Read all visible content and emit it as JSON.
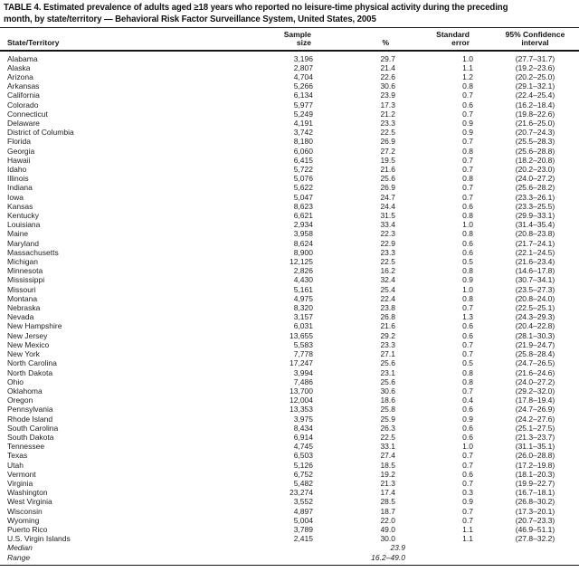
{
  "title": "TABLE 4. Estimated prevalence of adults aged ≥18 years who reported no leisure-time physical activity during the preceding\nmonth, by state/territory — Behavioral Risk Factor Surveillance System, United States, 2005",
  "table": {
    "columns": {
      "state": "State/Territory",
      "sample": "Sample\nsize",
      "pct": "%",
      "se": "Standard\nerror",
      "ci": "95% Confidence\ninterval"
    },
    "rows": [
      {
        "state": "Alabama",
        "sample": "3,196",
        "pct": "29.7",
        "se": "1.0",
        "ci": "(27.7–31.7)"
      },
      {
        "state": "Alaska",
        "sample": "2,807",
        "pct": "21.4",
        "se": "1.1",
        "ci": "(19.2–23.6)"
      },
      {
        "state": "Arizona",
        "sample": "4,704",
        "pct": "22.6",
        "se": "1.2",
        "ci": "(20.2–25.0)"
      },
      {
        "state": "Arkansas",
        "sample": "5,266",
        "pct": "30.6",
        "se": "0.8",
        "ci": "(29.1–32.1)"
      },
      {
        "state": "California",
        "sample": "6,134",
        "pct": "23.9",
        "se": "0.7",
        "ci": "(22.4–25.4)"
      },
      {
        "state": "Colorado",
        "sample": "5,977",
        "pct": "17.3",
        "se": "0.6",
        "ci": "(16.2–18.4)"
      },
      {
        "state": "Connecticut",
        "sample": "5,249",
        "pct": "21.2",
        "se": "0.7",
        "ci": "(19.8–22.6)"
      },
      {
        "state": "Delaware",
        "sample": "4,191",
        "pct": "23.3",
        "se": "0.9",
        "ci": "(21.6–25.0)"
      },
      {
        "state": "District of Columbia",
        "sample": "3,742",
        "pct": "22.5",
        "se": "0.9",
        "ci": "(20.7–24.3)"
      },
      {
        "state": "Florida",
        "sample": "8,180",
        "pct": "26.9",
        "se": "0.7",
        "ci": "(25.5–28.3)"
      },
      {
        "state": "Georgia",
        "sample": "6,060",
        "pct": "27.2",
        "se": "0.8",
        "ci": "(25.6–28.8)"
      },
      {
        "state": "Hawaii",
        "sample": "6,415",
        "pct": "19.5",
        "se": "0.7",
        "ci": "(18.2–20.8)"
      },
      {
        "state": "Idaho",
        "sample": "5,722",
        "pct": "21.6",
        "se": "0.7",
        "ci": "(20.2–23.0)"
      },
      {
        "state": "Illinois",
        "sample": "5,076",
        "pct": "25.6",
        "se": "0.8",
        "ci": "(24.0–27.2)"
      },
      {
        "state": "Indiana",
        "sample": "5,622",
        "pct": "26.9",
        "se": "0.7",
        "ci": "(25.6–28.2)"
      },
      {
        "state": "Iowa",
        "sample": "5,047",
        "pct": "24.7",
        "se": "0.7",
        "ci": "(23.3–26.1)"
      },
      {
        "state": "Kansas",
        "sample": "8,623",
        "pct": "24.4",
        "se": "0.6",
        "ci": "(23.3–25.5)"
      },
      {
        "state": "Kentucky",
        "sample": "6,621",
        "pct": "31.5",
        "se": "0.8",
        "ci": "(29.9–33.1)"
      },
      {
        "state": "Louisiana",
        "sample": "2,934",
        "pct": "33.4",
        "se": "1.0",
        "ci": "(31.4–35.4)"
      },
      {
        "state": "Maine",
        "sample": "3,958",
        "pct": "22.3",
        "se": "0.8",
        "ci": "(20.8–23.8)"
      },
      {
        "state": "Maryland",
        "sample": "8,624",
        "pct": "22.9",
        "se": "0.6",
        "ci": "(21.7–24.1)"
      },
      {
        "state": "Massachusetts",
        "sample": "8,900",
        "pct": "23.3",
        "se": "0.6",
        "ci": "(22.1–24.5)"
      },
      {
        "state": "Michigan",
        "sample": "12,125",
        "pct": "22.5",
        "se": "0.5",
        "ci": "(21.6–23.4)"
      },
      {
        "state": "Minnesota",
        "sample": "2,826",
        "pct": "16.2",
        "se": "0.8",
        "ci": "(14.6–17.8)"
      },
      {
        "state": "Mississippi",
        "sample": "4,430",
        "pct": "32.4",
        "se": "0.9",
        "ci": "(30.7–34.1)"
      },
      {
        "state": "Missouri",
        "sample": "5,161",
        "pct": "25.4",
        "se": "1.0",
        "ci": "(23.5–27.3)"
      },
      {
        "state": "Montana",
        "sample": "4,975",
        "pct": "22.4",
        "se": "0.8",
        "ci": "(20.8–24.0)"
      },
      {
        "state": "Nebraska",
        "sample": "8,320",
        "pct": "23.8",
        "se": "0.7",
        "ci": "(22.5–25.1)"
      },
      {
        "state": "Nevada",
        "sample": "3,157",
        "pct": "26.8",
        "se": "1.3",
        "ci": "(24.3–29.3)"
      },
      {
        "state": "New Hampshire",
        "sample": "6,031",
        "pct": "21.6",
        "se": "0.6",
        "ci": "(20.4–22.8)"
      },
      {
        "state": "New Jersey",
        "sample": "13,655",
        "pct": "29.2",
        "se": "0.6",
        "ci": "(28.1–30.3)"
      },
      {
        "state": "New Mexico",
        "sample": "5,583",
        "pct": "23.3",
        "se": "0.7",
        "ci": "(21.9–24.7)"
      },
      {
        "state": "New York",
        "sample": "7,778",
        "pct": "27.1",
        "se": "0.7",
        "ci": "(25.8–28.4)"
      },
      {
        "state": "North Carolina",
        "sample": "17,247",
        "pct": "25.6",
        "se": "0.5",
        "ci": "(24.7–26.5)"
      },
      {
        "state": "North Dakota",
        "sample": "3,994",
        "pct": "23.1",
        "se": "0.8",
        "ci": "(21.6–24.6)"
      },
      {
        "state": "Ohio",
        "sample": "7,486",
        "pct": "25.6",
        "se": "0.8",
        "ci": "(24.0–27.2)"
      },
      {
        "state": "Oklahoma",
        "sample": "13,700",
        "pct": "30.6",
        "se": "0.7",
        "ci": "(29.2–32.0)"
      },
      {
        "state": "Oregon",
        "sample": "12,004",
        "pct": "18.6",
        "se": "0.4",
        "ci": "(17.8–19.4)"
      },
      {
        "state": "Pennsylvania",
        "sample": "13,353",
        "pct": "25.8",
        "se": "0.6",
        "ci": "(24.7–26.9)"
      },
      {
        "state": "Rhode Island",
        "sample": "3,975",
        "pct": "25.9",
        "se": "0.9",
        "ci": "(24.2–27.6)"
      },
      {
        "state": "South Carolina",
        "sample": "8,434",
        "pct": "26.3",
        "se": "0.6",
        "ci": "(25.1–27.5)"
      },
      {
        "state": "South Dakota",
        "sample": "6,914",
        "pct": "22.5",
        "se": "0.6",
        "ci": "(21.3–23.7)"
      },
      {
        "state": "Tennessee",
        "sample": "4,745",
        "pct": "33.1",
        "se": "1.0",
        "ci": "(31.1–35.1)"
      },
      {
        "state": "Texas",
        "sample": "6,503",
        "pct": "27.4",
        "se": "0.7",
        "ci": "(26.0–28.8)"
      },
      {
        "state": "Utah",
        "sample": "5,126",
        "pct": "18.5",
        "se": "0.7",
        "ci": "(17.2–19.8)"
      },
      {
        "state": "Vermont",
        "sample": "6,752",
        "pct": "19.2",
        "se": "0.6",
        "ci": "(18.1–20.3)"
      },
      {
        "state": "Virginia",
        "sample": "5,482",
        "pct": "21.3",
        "se": "0.7",
        "ci": "(19.9–22.7)"
      },
      {
        "state": "Washington",
        "sample": "23,274",
        "pct": "17.4",
        "se": "0.3",
        "ci": "(16.7–18.1)"
      },
      {
        "state": "West Virginia",
        "sample": "3,552",
        "pct": "28.5",
        "se": "0.9",
        "ci": "(26.8–30.2)"
      },
      {
        "state": "Wisconsin",
        "sample": "4,897",
        "pct": "18.7",
        "se": "0.7",
        "ci": "(17.3–20.1)"
      },
      {
        "state": "Wyoming",
        "sample": "5,004",
        "pct": "22.0",
        "se": "0.7",
        "ci": "(20.7–23.3)"
      },
      {
        "state": "Puerto Rico",
        "sample": "3,789",
        "pct": "49.0",
        "se": "1.1",
        "ci": "(46.9–51.1)"
      },
      {
        "state": "U.S. Virgin Islands",
        "sample": "2,415",
        "pct": "30.0",
        "se": "1.1",
        "ci": "(27.8–32.2)"
      }
    ],
    "summary_rows": [
      {
        "state": "Median",
        "sample": "",
        "pct": "23.9",
        "se": "",
        "ci": ""
      },
      {
        "state": "Range",
        "sample": "",
        "pct": "16.2–49.0",
        "se": "",
        "ci": ""
      }
    ]
  }
}
